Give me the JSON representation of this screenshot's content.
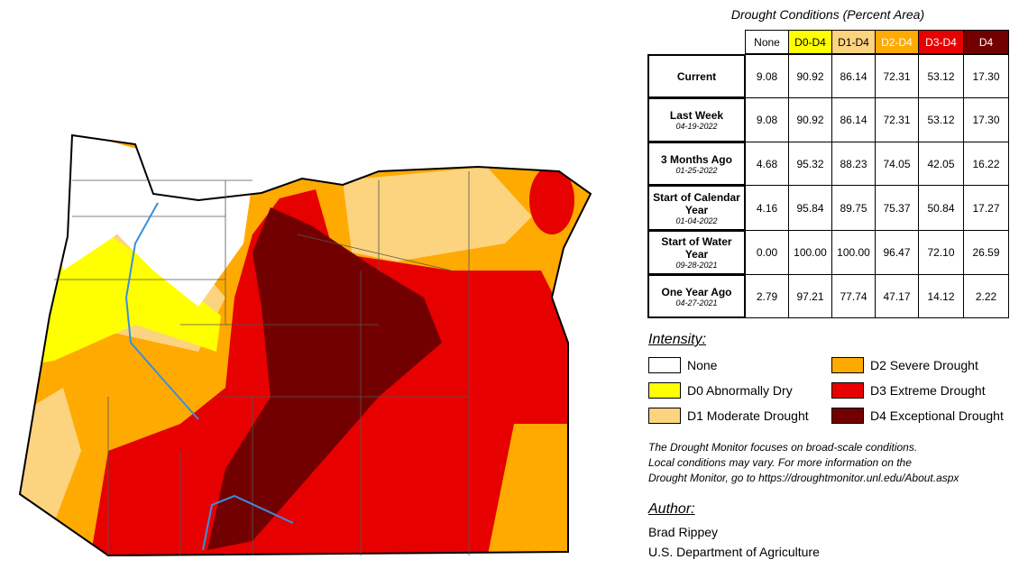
{
  "table": {
    "title": "Drought Conditions (Percent Area)",
    "columns": [
      {
        "label": "None",
        "color": "#ffffff",
        "text_color": "#000000"
      },
      {
        "label": "D0-D4",
        "color": "#ffff00",
        "text_color": "#000000"
      },
      {
        "label": "D1-D4",
        "color": "#fcd37f",
        "text_color": "#000000"
      },
      {
        "label": "D2-D4",
        "color": "#ffaa00",
        "text_color": "#ffffff"
      },
      {
        "label": "D3-D4",
        "color": "#e60000",
        "text_color": "#ffffff"
      },
      {
        "label": "D4",
        "color": "#730000",
        "text_color": "#ffffff"
      }
    ],
    "rows": [
      {
        "label": "Current",
        "values": [
          "9.08",
          "90.92",
          "86.14",
          "72.31",
          "53.12",
          "17.30"
        ]
      },
      {
        "label": "Last Week",
        "date": "04-19-2022",
        "values": [
          "9.08",
          "90.92",
          "86.14",
          "72.31",
          "53.12",
          "17.30"
        ]
      },
      {
        "label": "3 Months Ago",
        "date": "01-25-2022",
        "values": [
          "4.68",
          "95.32",
          "88.23",
          "74.05",
          "42.05",
          "16.22"
        ]
      },
      {
        "label": "Start of Calendar Year",
        "date": "01-04-2022",
        "values": [
          "4.16",
          "95.84",
          "89.75",
          "75.37",
          "50.84",
          "17.27"
        ]
      },
      {
        "label": "Start of Water Year",
        "date": "09-28-2021",
        "values": [
          "0.00",
          "100.00",
          "100.00",
          "96.47",
          "72.10",
          "26.59"
        ]
      },
      {
        "label": "One Year Ago",
        "date": "04-27-2021",
        "values": [
          "2.79",
          "97.21",
          "77.74",
          "47.17",
          "14.12",
          "2.22"
        ]
      }
    ]
  },
  "legend": {
    "title": "Intensity:",
    "items": [
      {
        "label": "None",
        "color": "#ffffff"
      },
      {
        "label": "D0 Abnormally Dry",
        "color": "#ffff00"
      },
      {
        "label": "D1 Moderate Drought",
        "color": "#fcd37f"
      },
      {
        "label": "D2 Severe Drought",
        "color": "#ffaa00"
      },
      {
        "label": "D3 Extreme Drought",
        "color": "#e60000"
      },
      {
        "label": "D4 Exceptional Drought",
        "color": "#730000"
      }
    ]
  },
  "note": [
    "The Drought Monitor focuses on broad-scale conditions.",
    "Local conditions may vary. For more information on the",
    "Drought Monitor, go to https://droughtmonitor.unl.edu/About.aspx"
  ],
  "author": {
    "title": "Author:",
    "lines": [
      "Brad Rippey",
      "U.S. Department of Agriculture"
    ]
  }
}
